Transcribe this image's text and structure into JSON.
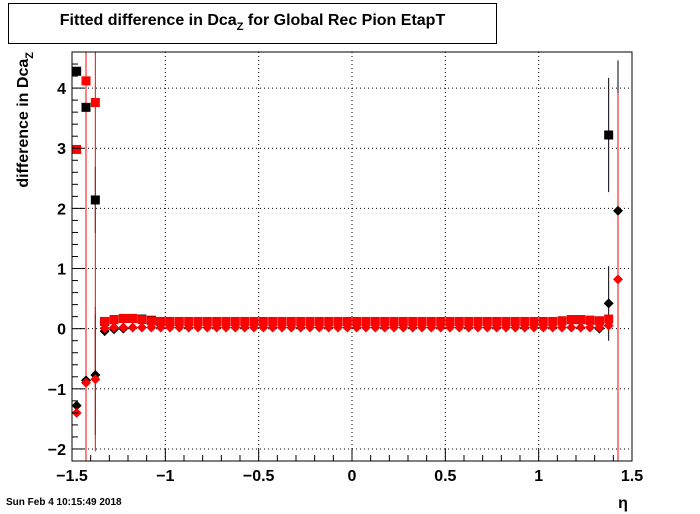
{
  "title": {
    "main": "Fitted difference in Dca",
    "subscript": "Z",
    "rest": " for Global Rec Pion EtapT"
  },
  "timestamp": "Sun Feb  4 10:15:49 2018",
  "chart_data": {
    "type": "scatter",
    "title": "Fitted difference in Dca_Z for Global Rec Pion EtapT",
    "xlabel": "η",
    "ylabel_main": "difference in Dca",
    "ylabel_sub": "Z",
    "xlim": [
      -1.5,
      1.5
    ],
    "ylim": [
      -2.2,
      4.6
    ],
    "grid": true,
    "x_ticks": [
      -1.5,
      -1,
      -0.5,
      0,
      0.5,
      1,
      1.5
    ],
    "x_tick_labels": [
      "−1.5",
      "−1",
      "−0.5",
      "0",
      "0.5",
      "1",
      "1.5"
    ],
    "y_ticks": [
      -2,
      -1,
      0,
      1,
      2,
      3,
      4
    ],
    "y_tick_labels": [
      "−2",
      "−1",
      "0",
      "1",
      "2",
      "3",
      "4"
    ],
    "series": [
      {
        "marker": "square",
        "color": "#000000",
        "points": [
          {
            "x": -1.475,
            "y": 4.28,
            "err": 0.0
          },
          {
            "x": -1.425,
            "y": 3.68,
            "err": 2.2
          },
          {
            "x": -1.375,
            "y": 2.14,
            "err": 0.55
          },
          {
            "x": -1.325,
            "y": 0.12,
            "err": 0.03
          },
          {
            "x": -1.275,
            "y": 0.15,
            "err": 0.03
          },
          {
            "x": -1.225,
            "y": 0.17,
            "err": 0.03
          },
          {
            "x": -1.175,
            "y": 0.17,
            "err": 0.03
          },
          {
            "x": -1.125,
            "y": 0.16,
            "err": 0.03
          },
          {
            "x": -1.075,
            "y": 0.14,
            "err": 0.03
          },
          {
            "x": -1.025,
            "y": 0.12,
            "err": 0.02
          },
          {
            "x": -0.975,
            "y": 0.12,
            "err": 0.02
          },
          {
            "x": 1.125,
            "y": 0.13,
            "err": 0.02
          },
          {
            "x": 1.175,
            "y": 0.15,
            "err": 0.03
          },
          {
            "x": 1.225,
            "y": 0.15,
            "err": 0.03
          },
          {
            "x": 1.275,
            "y": 0.14,
            "err": 0.03
          },
          {
            "x": 1.325,
            "y": 0.13,
            "err": 0.03
          },
          {
            "x": 1.375,
            "y": 3.22,
            "err": 0.95
          }
        ]
      },
      {
        "marker": "square",
        "color": "#ff0000",
        "points": [
          {
            "x": -1.475,
            "y": 2.98,
            "err": 0.0
          },
          {
            "x": -1.425,
            "y": 4.12,
            "err": 4.6
          },
          {
            "x": -1.375,
            "y": 3.76,
            "err": 4.6
          },
          {
            "x": -1.325,
            "y": 0.12,
            "err": 0.03
          },
          {
            "x": -1.275,
            "y": 0.15,
            "err": 0.03
          },
          {
            "x": -1.225,
            "y": 0.17,
            "err": 0.03
          },
          {
            "x": -1.175,
            "y": 0.17,
            "err": 0.03
          },
          {
            "x": -1.125,
            "y": 0.15,
            "err": 0.03
          },
          {
            "x": -1.075,
            "y": 0.13,
            "err": 0.03
          },
          {
            "x": -1.025,
            "y": 0.12,
            "err": 0.02
          },
          {
            "x": -0.975,
            "y": 0.12,
            "err": 0.02
          },
          {
            "x": -0.925,
            "y": 0.12,
            "err": 0.02
          },
          {
            "x": -0.875,
            "y": 0.12,
            "err": 0.02
          },
          {
            "x": -0.825,
            "y": 0.12,
            "err": 0.02
          },
          {
            "x": -0.775,
            "y": 0.12,
            "err": 0.02
          },
          {
            "x": -0.725,
            "y": 0.12,
            "err": 0.02
          },
          {
            "x": -0.675,
            "y": 0.12,
            "err": 0.02
          },
          {
            "x": -0.625,
            "y": 0.12,
            "err": 0.02
          },
          {
            "x": -0.575,
            "y": 0.12,
            "err": 0.02
          },
          {
            "x": -0.525,
            "y": 0.12,
            "err": 0.02
          },
          {
            "x": -0.475,
            "y": 0.12,
            "err": 0.02
          },
          {
            "x": -0.425,
            "y": 0.12,
            "err": 0.02
          },
          {
            "x": -0.375,
            "y": 0.12,
            "err": 0.02
          },
          {
            "x": -0.325,
            "y": 0.12,
            "err": 0.02
          },
          {
            "x": -0.275,
            "y": 0.12,
            "err": 0.02
          },
          {
            "x": -0.225,
            "y": 0.12,
            "err": 0.02
          },
          {
            "x": -0.175,
            "y": 0.12,
            "err": 0.02
          },
          {
            "x": -0.125,
            "y": 0.12,
            "err": 0.02
          },
          {
            "x": -0.075,
            "y": 0.12,
            "err": 0.02
          },
          {
            "x": -0.025,
            "y": 0.12,
            "err": 0.02
          },
          {
            "x": 0.025,
            "y": 0.12,
            "err": 0.02
          },
          {
            "x": 0.075,
            "y": 0.12,
            "err": 0.02
          },
          {
            "x": 0.125,
            "y": 0.12,
            "err": 0.02
          },
          {
            "x": 0.175,
            "y": 0.12,
            "err": 0.02
          },
          {
            "x": 0.225,
            "y": 0.12,
            "err": 0.02
          },
          {
            "x": 0.275,
            "y": 0.12,
            "err": 0.02
          },
          {
            "x": 0.325,
            "y": 0.12,
            "err": 0.02
          },
          {
            "x": 0.375,
            "y": 0.12,
            "err": 0.02
          },
          {
            "x": 0.425,
            "y": 0.12,
            "err": 0.02
          },
          {
            "x": 0.475,
            "y": 0.12,
            "err": 0.02
          },
          {
            "x": 0.525,
            "y": 0.12,
            "err": 0.02
          },
          {
            "x": 0.575,
            "y": 0.12,
            "err": 0.02
          },
          {
            "x": 0.625,
            "y": 0.12,
            "err": 0.02
          },
          {
            "x": 0.675,
            "y": 0.12,
            "err": 0.02
          },
          {
            "x": 0.725,
            "y": 0.12,
            "err": 0.02
          },
          {
            "x": 0.775,
            "y": 0.12,
            "err": 0.02
          },
          {
            "x": 0.825,
            "y": 0.12,
            "err": 0.02
          },
          {
            "x": 0.875,
            "y": 0.12,
            "err": 0.02
          },
          {
            "x": 0.925,
            "y": 0.12,
            "err": 0.02
          },
          {
            "x": 0.975,
            "y": 0.12,
            "err": 0.02
          },
          {
            "x": 1.025,
            "y": 0.12,
            "err": 0.02
          },
          {
            "x": 1.075,
            "y": 0.12,
            "err": 0.02
          },
          {
            "x": 1.125,
            "y": 0.13,
            "err": 0.02
          },
          {
            "x": 1.175,
            "y": 0.15,
            "err": 0.03
          },
          {
            "x": 1.225,
            "y": 0.15,
            "err": 0.03
          },
          {
            "x": 1.275,
            "y": 0.14,
            "err": 0.03
          },
          {
            "x": 1.325,
            "y": 0.13,
            "err": 0.03
          },
          {
            "x": 1.375,
            "y": 0.16,
            "err": 0.06
          }
        ]
      },
      {
        "marker": "diamond",
        "color": "#000000",
        "points": [
          {
            "x": -1.475,
            "y": -1.28,
            "err": 0.0
          },
          {
            "x": -1.425,
            "y": -0.86,
            "err": 1.2
          },
          {
            "x": -1.375,
            "y": -0.77,
            "err": 1.0
          },
          {
            "x": -1.325,
            "y": -0.04,
            "err": 0.03
          },
          {
            "x": -1.275,
            "y": -0.01,
            "err": 0.02
          },
          {
            "x": -1.225,
            "y": 0.0,
            "err": 0.02
          },
          {
            "x": 1.325,
            "y": 0.0,
            "err": 0.02
          },
          {
            "x": 1.375,
            "y": 0.42,
            "err": 0.62
          },
          {
            "x": 1.425,
            "y": 1.96,
            "err": 2.5
          }
        ]
      },
      {
        "marker": "diamond",
        "color": "#ff0000",
        "points": [
          {
            "x": -1.475,
            "y": -1.4,
            "err": 0.0
          },
          {
            "x": -1.425,
            "y": -0.9,
            "err": 1.3
          },
          {
            "x": -1.375,
            "y": -0.84,
            "err": 1.2
          },
          {
            "x": -1.325,
            "y": 0.01,
            "err": 0.02
          },
          {
            "x": -1.275,
            "y": 0.02,
            "err": 0.02
          },
          {
            "x": -1.225,
            "y": 0.02,
            "err": 0.02
          },
          {
            "x": -1.175,
            "y": 0.02,
            "err": 0.02
          },
          {
            "x": -1.125,
            "y": 0.02,
            "err": 0.02
          },
          {
            "x": -1.075,
            "y": 0.02,
            "err": 0.02
          },
          {
            "x": -1.025,
            "y": 0.02,
            "err": 0.02
          },
          {
            "x": -0.975,
            "y": 0.02,
            "err": 0.02
          },
          {
            "x": -0.925,
            "y": 0.02,
            "err": 0.02
          },
          {
            "x": -0.875,
            "y": 0.02,
            "err": 0.02
          },
          {
            "x": -0.825,
            "y": 0.02,
            "err": 0.02
          },
          {
            "x": -0.775,
            "y": 0.02,
            "err": 0.02
          },
          {
            "x": -0.725,
            "y": 0.02,
            "err": 0.02
          },
          {
            "x": -0.675,
            "y": 0.02,
            "err": 0.02
          },
          {
            "x": -0.625,
            "y": 0.02,
            "err": 0.02
          },
          {
            "x": -0.575,
            "y": 0.02,
            "err": 0.02
          },
          {
            "x": -0.525,
            "y": 0.02,
            "err": 0.02
          },
          {
            "x": -0.475,
            "y": 0.02,
            "err": 0.02
          },
          {
            "x": -0.425,
            "y": 0.02,
            "err": 0.02
          },
          {
            "x": -0.375,
            "y": 0.02,
            "err": 0.02
          },
          {
            "x": -0.325,
            "y": 0.02,
            "err": 0.02
          },
          {
            "x": -0.275,
            "y": 0.02,
            "err": 0.02
          },
          {
            "x": -0.225,
            "y": 0.02,
            "err": 0.02
          },
          {
            "x": -0.175,
            "y": 0.02,
            "err": 0.02
          },
          {
            "x": -0.125,
            "y": 0.02,
            "err": 0.02
          },
          {
            "x": -0.075,
            "y": 0.02,
            "err": 0.02
          },
          {
            "x": -0.025,
            "y": 0.02,
            "err": 0.02
          },
          {
            "x": 0.025,
            "y": 0.02,
            "err": 0.02
          },
          {
            "x": 0.075,
            "y": 0.02,
            "err": 0.02
          },
          {
            "x": 0.125,
            "y": 0.02,
            "err": 0.02
          },
          {
            "x": 0.175,
            "y": 0.02,
            "err": 0.02
          },
          {
            "x": 0.225,
            "y": 0.02,
            "err": 0.02
          },
          {
            "x": 0.275,
            "y": 0.02,
            "err": 0.02
          },
          {
            "x": 0.325,
            "y": 0.02,
            "err": 0.02
          },
          {
            "x": 0.375,
            "y": 0.02,
            "err": 0.02
          },
          {
            "x": 0.425,
            "y": 0.02,
            "err": 0.02
          },
          {
            "x": 0.475,
            "y": 0.02,
            "err": 0.02
          },
          {
            "x": 0.525,
            "y": 0.02,
            "err": 0.02
          },
          {
            "x": 0.575,
            "y": 0.02,
            "err": 0.02
          },
          {
            "x": 0.625,
            "y": 0.02,
            "err": 0.02
          },
          {
            "x": 0.675,
            "y": 0.02,
            "err": 0.02
          },
          {
            "x": 0.725,
            "y": 0.02,
            "err": 0.02
          },
          {
            "x": 0.775,
            "y": 0.02,
            "err": 0.02
          },
          {
            "x": 0.825,
            "y": 0.02,
            "err": 0.02
          },
          {
            "x": 0.875,
            "y": 0.02,
            "err": 0.02
          },
          {
            "x": 0.925,
            "y": 0.02,
            "err": 0.02
          },
          {
            "x": 0.975,
            "y": 0.02,
            "err": 0.02
          },
          {
            "x": 1.025,
            "y": 0.02,
            "err": 0.02
          },
          {
            "x": 1.075,
            "y": 0.02,
            "err": 0.02
          },
          {
            "x": 1.125,
            "y": 0.02,
            "err": 0.02
          },
          {
            "x": 1.175,
            "y": 0.02,
            "err": 0.02
          },
          {
            "x": 1.225,
            "y": 0.02,
            "err": 0.02
          },
          {
            "x": 1.275,
            "y": 0.02,
            "err": 0.02
          },
          {
            "x": 1.325,
            "y": 0.02,
            "err": 0.02
          },
          {
            "x": 1.375,
            "y": 0.05,
            "err": 0.04
          },
          {
            "x": 1.425,
            "y": 0.82,
            "err": 3.1
          }
        ]
      }
    ]
  }
}
